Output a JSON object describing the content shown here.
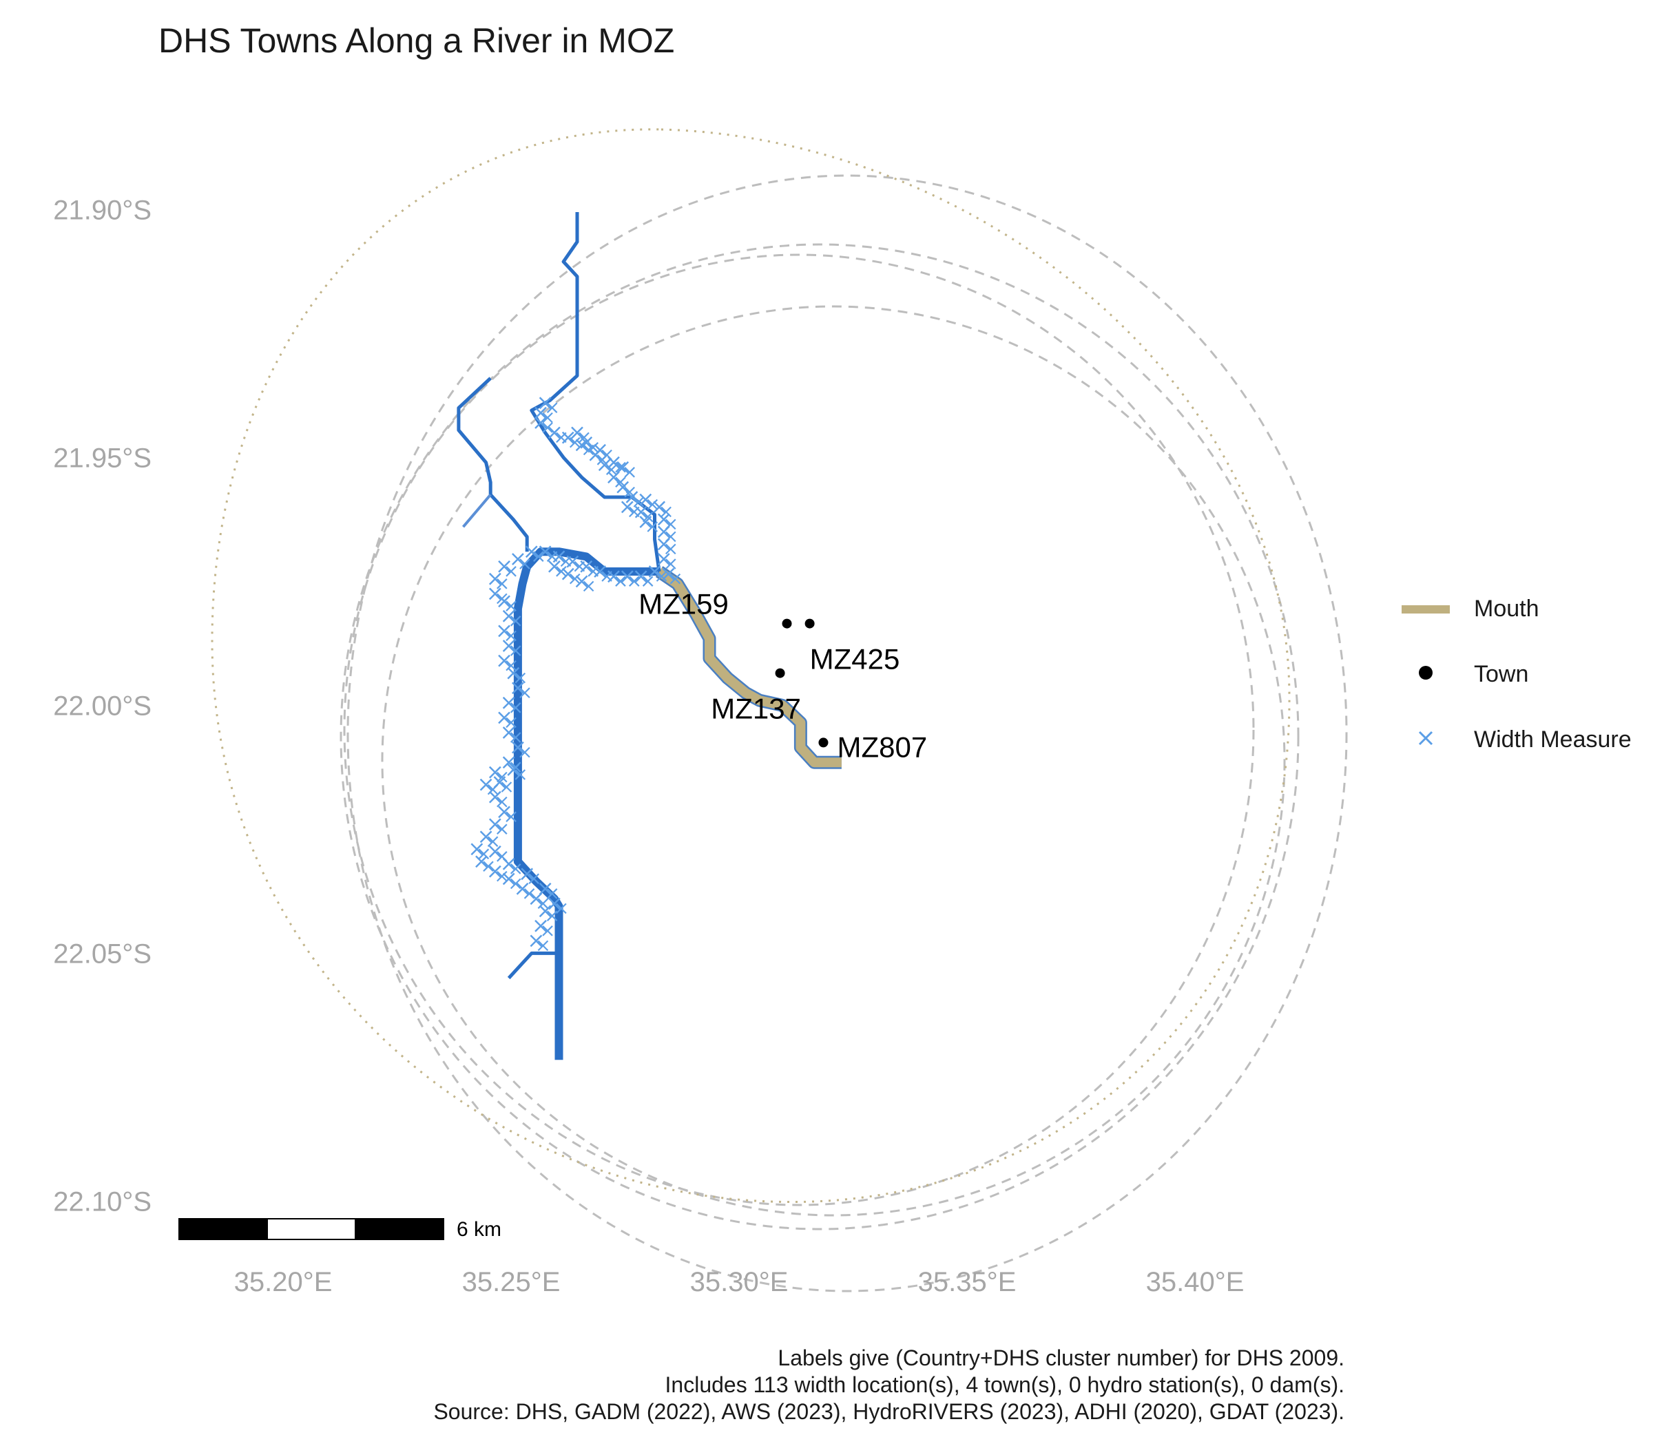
{
  "title": "DHS Towns Along a River in MOZ",
  "axes": {
    "y_ticks": [
      {
        "value": -21.9,
        "label": "21.90°S"
      },
      {
        "value": -21.95,
        "label": "21.95°S"
      },
      {
        "value": -22.0,
        "label": "22.00°S"
      },
      {
        "value": -22.05,
        "label": "22.05°S"
      },
      {
        "value": -22.1,
        "label": "22.10°S"
      }
    ],
    "x_ticks": [
      {
        "value": 35.2,
        "label": "35.20°E"
      },
      {
        "value": 35.25,
        "label": "35.25°E"
      },
      {
        "value": 35.3,
        "label": "35.30°E"
      },
      {
        "value": 35.35,
        "label": "35.35°E"
      },
      {
        "value": 35.4,
        "label": "35.40°E"
      }
    ],
    "tick_color": "#a6a6a6"
  },
  "legend": [
    {
      "key": "mouth",
      "label": "Mouth",
      "color": "#bfb07f"
    },
    {
      "key": "town",
      "label": "Town",
      "color": "#000000"
    },
    {
      "key": "width",
      "label": "Width Measure",
      "color": "#5b9ee6"
    }
  ],
  "towns": [
    {
      "id": "MZ159",
      "label": "MZ159",
      "lon": 35.3105,
      "lat": -21.983
    },
    {
      "id": "MZ425",
      "label": "MZ425",
      "lon": 35.3155,
      "lat": -21.983
    },
    {
      "id": "MZ137",
      "label": "MZ137",
      "lon": 35.309,
      "lat": -21.993
    },
    {
      "id": "MZ807",
      "label": "MZ807",
      "lon": 35.3185,
      "lat": -22.007
    }
  ],
  "rivers": [
    {
      "name": "mouth",
      "width": 14,
      "color": "#bfb07f",
      "outline": "#4a7fc1",
      "coords": [
        [
          35.2825,
          -21.9725
        ],
        [
          35.2865,
          -21.975
        ],
        [
          35.2905,
          -21.981
        ],
        [
          35.2935,
          -21.986
        ],
        [
          35.2935,
          -21.99
        ],
        [
          35.2975,
          -21.994
        ],
        [
          35.3015,
          -21.997
        ],
        [
          35.3045,
          -21.9985
        ],
        [
          35.3095,
          -21.9995
        ],
        [
          35.3135,
          -22.003
        ],
        [
          35.3135,
          -22.008
        ],
        [
          35.3165,
          -22.011
        ],
        [
          35.3225,
          -22.011
        ]
      ]
    },
    {
      "name": "main-stem",
      "width": 12,
      "color": "#2a6fc6",
      "coords": [
        [
          35.2825,
          -21.9725
        ],
        [
          35.2705,
          -21.9725
        ],
        [
          35.2665,
          -21.9695
        ],
        [
          35.2605,
          -21.9685
        ],
        [
          35.2565,
          -21.9685
        ],
        [
          35.2535,
          -21.9715
        ],
        [
          35.2525,
          -21.975
        ],
        [
          35.2515,
          -21.98
        ],
        [
          35.2515,
          -22.0
        ],
        [
          35.2515,
          -22.031
        ],
        [
          35.2555,
          -22.035
        ],
        [
          35.2595,
          -22.0385
        ],
        [
          35.2605,
          -22.04
        ],
        [
          35.2605,
          -22.055
        ],
        [
          35.2605,
          -22.071
        ]
      ]
    },
    {
      "name": "north-trib",
      "width": 5,
      "color": "#2a6fc6",
      "coords": [
        [
          35.2645,
          -21.9
        ],
        [
          35.2645,
          -21.906
        ],
        [
          35.2615,
          -21.91
        ],
        [
          35.2645,
          -21.913
        ],
        [
          35.2645,
          -21.933
        ],
        [
          35.2585,
          -21.938
        ],
        [
          35.2545,
          -21.94
        ],
        [
          35.2575,
          -21.9445
        ],
        [
          35.2615,
          -21.9495
        ],
        [
          35.2655,
          -21.9535
        ],
        [
          35.2705,
          -21.9575
        ],
        [
          35.2765,
          -21.9575
        ],
        [
          35.2815,
          -21.961
        ],
        [
          35.2815,
          -21.966
        ],
        [
          35.2825,
          -21.9725
        ]
      ]
    },
    {
      "name": "west-trib",
      "width": 5,
      "color": "#2a6fc6",
      "coords": [
        [
          35.2455,
          -21.9335
        ],
        [
          35.2385,
          -21.9395
        ],
        [
          35.2385,
          -21.944
        ],
        [
          35.2445,
          -21.9505
        ],
        [
          35.2455,
          -21.9545
        ],
        [
          35.2455,
          -21.957
        ],
        [
          35.2505,
          -21.962
        ],
        [
          35.2535,
          -21.9655
        ],
        [
          35.2535,
          -21.9685
        ]
      ]
    },
    {
      "name": "west-spur",
      "width": 4,
      "color": "#5b8fd6",
      "coords": [
        [
          35.2455,
          -21.957
        ],
        [
          35.2395,
          -21.9635
        ]
      ]
    },
    {
      "name": "south-trib",
      "width": 5,
      "color": "#2a6fc6",
      "coords": [
        [
          35.2495,
          -22.0545
        ],
        [
          35.2545,
          -22.0495
        ],
        [
          35.2605,
          -22.0495
        ]
      ]
    }
  ],
  "width_measures": [
    [
      [
        35.2575,
        -21.9385
      ],
      [
        35.2565,
        -21.9405
      ],
      [
        35.2565,
        -21.9425
      ],
      [
        35.2595,
        -21.9445
      ],
      [
        35.2625,
        -21.9455
      ],
      [
        35.2655,
        -21.947
      ],
      [
        35.2685,
        -21.949
      ],
      [
        35.2705,
        -21.951
      ],
      [
        35.2725,
        -21.9535
      ],
      [
        35.2745,
        -21.9555
      ],
      [
        35.2765,
        -21.9575
      ],
      [
        35.2755,
        -21.9595
      ],
      [
        35.2795,
        -21.958
      ],
      [
        35.2825,
        -21.9595
      ],
      [
        35.2835,
        -21.962
      ],
      [
        35.2835,
        -21.9645
      ],
      [
        35.2835,
        -21.967
      ],
      [
        35.2835,
        -21.97
      ],
      [
        35.2845,
        -21.973
      ]
    ],
    [
      [
        35.2645,
        -21.9445
      ],
      [
        35.2665,
        -21.9465
      ],
      [
        35.2695,
        -21.948
      ],
      [
        35.2725,
        -21.9505
      ],
      [
        35.2745,
        -21.9515
      ]
    ],
    [
      [
        35.2785,
        -21.9605
      ],
      [
        35.2795,
        -21.9625
      ]
    ],
    [
      [
        35.2815,
        -21.9725
      ],
      [
        35.2785,
        -21.9735
      ],
      [
        35.2755,
        -21.9735
      ],
      [
        35.2725,
        -21.9735
      ],
      [
        35.2695,
        -21.9725
      ],
      [
        35.2665,
        -21.9715
      ],
      [
        35.2635,
        -21.9705
      ],
      [
        35.2605,
        -21.9695
      ],
      [
        35.2575,
        -21.9685
      ],
      [
        35.2545,
        -21.9685
      ],
      [
        35.2515,
        -21.97
      ],
      [
        35.2485,
        -21.9715
      ],
      [
        35.2465,
        -21.974
      ],
      [
        35.2465,
        -21.977
      ]
    ],
    [
      [
        35.2655,
        -21.9745
      ],
      [
        35.2625,
        -21.973
      ],
      [
        35.2595,
        -21.9715
      ]
    ],
    [
      [
        35.2485,
        -21.9785
      ],
      [
        35.2495,
        -21.9815
      ],
      [
        35.2485,
        -21.9845
      ],
      [
        35.2495,
        -21.9875
      ],
      [
        35.2485,
        -21.9905
      ],
      [
        35.2505,
        -21.993
      ],
      [
        35.2515,
        -21.996
      ],
      [
        35.2495,
        -21.999
      ],
      [
        35.2485,
        -22.002
      ],
      [
        35.2495,
        -22.005
      ],
      [
        35.2515,
        -22.008
      ],
      [
        35.2495,
        -22.011
      ],
      [
        35.2465,
        -22.013
      ],
      [
        35.2445,
        -22.0155
      ],
      [
        35.2465,
        -22.018
      ],
      [
        35.2485,
        -22.021
      ],
      [
        35.2465,
        -22.0235
      ],
      [
        35.2445,
        -22.026
      ],
      [
        35.2425,
        -22.0285
      ],
      [
        35.2435,
        -22.031
      ],
      [
        35.2465,
        -22.033
      ],
      [
        35.2495,
        -22.0345
      ],
      [
        35.2525,
        -22.0365
      ],
      [
        35.2555,
        -22.0385
      ],
      [
        35.2575,
        -22.041
      ],
      [
        35.2565,
        -22.044
      ],
      [
        35.2555,
        -22.047
      ]
    ],
    [
      [
        35.2505,
        -22.0125
      ],
      [
        35.2475,
        -22.015
      ],
      [
        35.2465,
        -22.029
      ],
      [
        35.2495,
        -22.0315
      ],
      [
        35.2535,
        -22.0335
      ],
      [
        35.2575,
        -22.0365
      ],
      [
        35.2595,
        -22.0395
      ]
    ]
  ],
  "scale_bar": {
    "label": "6 km"
  },
  "caption_lines": [
    "Labels give (Country+DHS cluster number) for DHS 2009.",
    "Includes 113 width location(s), 4 town(s), 0 hydro station(s), 0 dam(s).",
    "Source: DHS, GADM (2022), AWS (2023), HydroRIVERS (2023), ADHI (2020), GDAT (2023)."
  ],
  "buffer_color": "#bdbdbd",
  "outer_buffer_color": "#c2b48a"
}
